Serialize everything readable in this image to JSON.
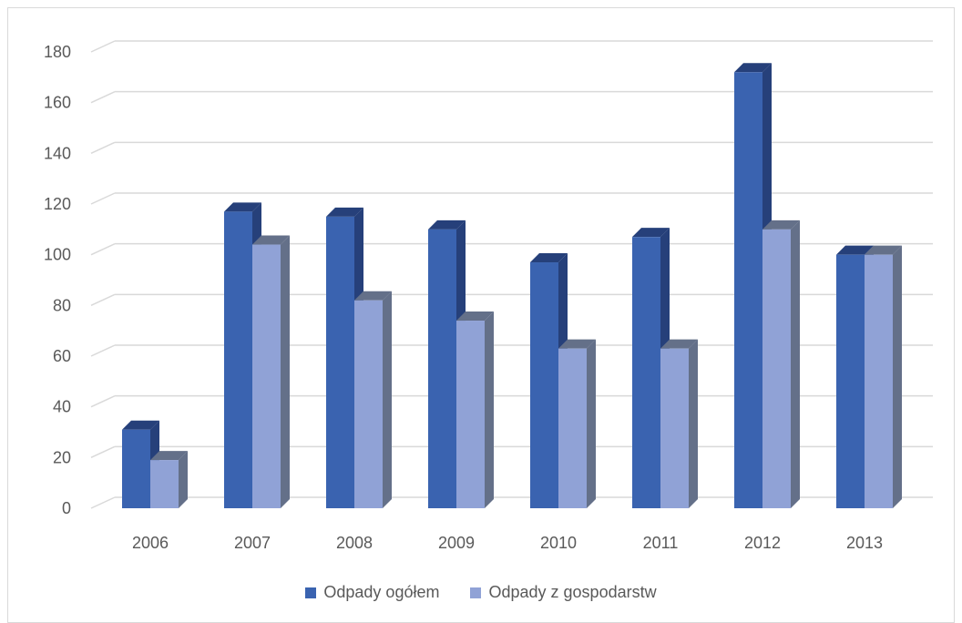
{
  "chart_data": {
    "type": "bar",
    "title": "",
    "xlabel": "",
    "ylabel": "",
    "categories": [
      "2006",
      "2007",
      "2008",
      "2009",
      "2010",
      "2011",
      "2012",
      "2013"
    ],
    "series": [
      {
        "name": "Odpady ogółem",
        "values": [
          31,
          117,
          115,
          110,
          97,
          107,
          172,
          100
        ],
        "color": "#3a63b0",
        "side_color": "#26407a"
      },
      {
        "name": "Odpady z gospodarstw",
        "values": [
          19,
          104,
          82,
          74,
          63,
          63,
          110,
          100
        ],
        "color": "#90a2d6",
        "side_color": "#647089"
      }
    ],
    "yticks": [
      "0",
      "20",
      "40",
      "60",
      "80",
      "100",
      "120",
      "140",
      "160",
      "180"
    ],
    "ylim": [
      0,
      180
    ],
    "grid": true,
    "style": "3d-clustered-column",
    "legend_position": "bottom"
  }
}
